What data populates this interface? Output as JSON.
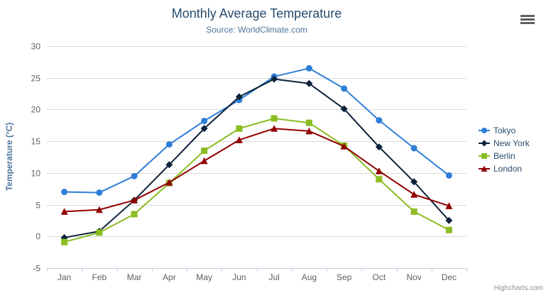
{
  "header": {
    "title": "Monthly Average Temperature",
    "subtitle": "Source: WorldClimate.com"
  },
  "credits_label": "Highcharts.com",
  "chart_data": {
    "type": "line",
    "title": "Monthly Average Temperature",
    "subtitle": "Source: WorldClimate.com",
    "xlabel": "",
    "ylabel": "Temperature (°C)",
    "categories": [
      "Jan",
      "Feb",
      "Mar",
      "Apr",
      "May",
      "Jun",
      "Jul",
      "Aug",
      "Sep",
      "Oct",
      "Nov",
      "Dec"
    ],
    "ylim": [
      -5,
      30
    ],
    "ytick_interval": 5,
    "grid": true,
    "legend_position": "right",
    "series": [
      {
        "name": "Tokyo",
        "color": "#2f7ed8",
        "marker": "circle",
        "values": [
          7.0,
          6.9,
          9.5,
          14.5,
          18.2,
          21.5,
          25.2,
          26.5,
          23.3,
          18.3,
          13.9,
          9.6
        ]
      },
      {
        "name": "New York",
        "color": "#0d233a",
        "marker": "diamond",
        "values": [
          -0.2,
          0.8,
          5.7,
          11.3,
          17.0,
          22.0,
          24.8,
          24.1,
          20.1,
          14.1,
          8.6,
          2.5
        ]
      },
      {
        "name": "Berlin",
        "color": "#8bbc21",
        "marker": "square",
        "values": [
          -0.9,
          0.6,
          3.5,
          8.4,
          13.5,
          17.0,
          18.6,
          17.9,
          14.3,
          9.0,
          3.9,
          1.0
        ]
      },
      {
        "name": "London",
        "color": "#910000",
        "marker": "triangle",
        "values": [
          3.9,
          4.2,
          5.7,
          8.5,
          11.9,
          15.2,
          17.0,
          16.6,
          14.2,
          10.3,
          6.6,
          4.8
        ]
      }
    ],
    "colors": {
      "title": "#274b6d",
      "subtitle": "#4d759e",
      "axis_title": "#4d759e",
      "axis_labels": "#606060",
      "grid": "#d8d8d8",
      "axis_line": "#c0d0e0",
      "legend_text": "#274b6d",
      "credits": "#909090",
      "menu_icon": "#606060",
      "background": "#ffffff"
    }
  }
}
